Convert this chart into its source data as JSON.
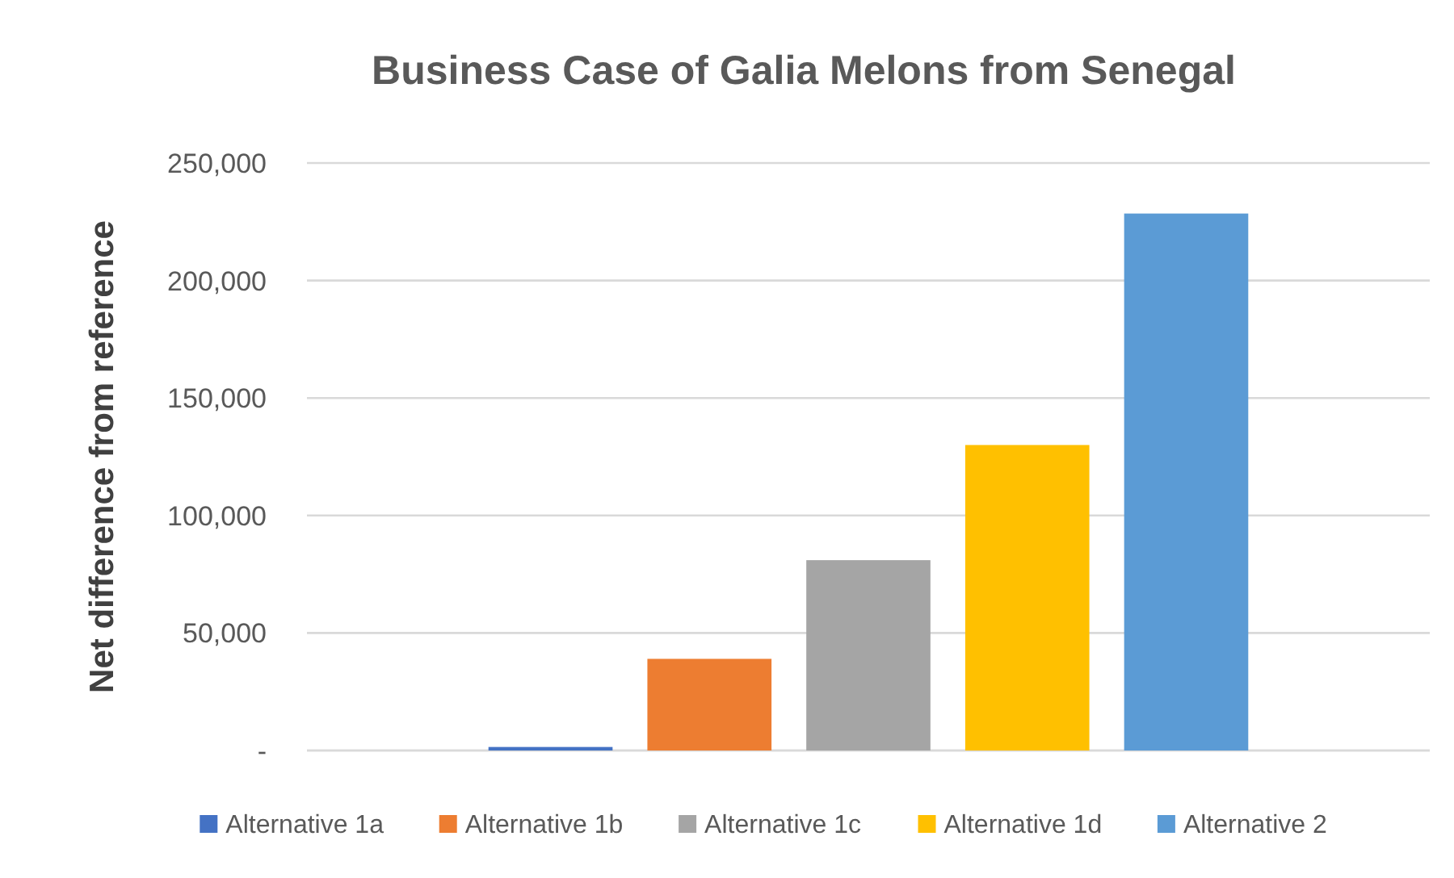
{
  "chart_data": {
    "type": "bar",
    "title": "Business Case of Galia Melons from Senegal",
    "ylabel": "Net difference from reference",
    "categories": [
      null
    ],
    "series": [
      {
        "name": "Alternative 1a",
        "color": "#4472c4",
        "values": [
          1500
        ]
      },
      {
        "name": "Alternative 1b",
        "color": "#ed7d31",
        "values": [
          39000
        ]
      },
      {
        "name": "Alternative 1c",
        "color": "#a5a5a5",
        "values": [
          81000
        ]
      },
      {
        "name": "Alternative 1d",
        "color": "#ffc000",
        "values": [
          130000
        ]
      },
      {
        "name": "Alternative 2",
        "color": "#5b9bd5",
        "values": [
          228500
        ]
      }
    ],
    "ylim": [
      0,
      250000
    ],
    "yticks": [
      {
        "value": 0,
        "label": "-"
      },
      {
        "value": 50000,
        "label": "50,000"
      },
      {
        "value": 100000,
        "label": "100,000"
      },
      {
        "value": 150000,
        "label": "150,000"
      },
      {
        "value": 200000,
        "label": "200,000"
      },
      {
        "value": 250000,
        "label": "250,000"
      }
    ],
    "grid": "y",
    "legend": "bottom"
  }
}
